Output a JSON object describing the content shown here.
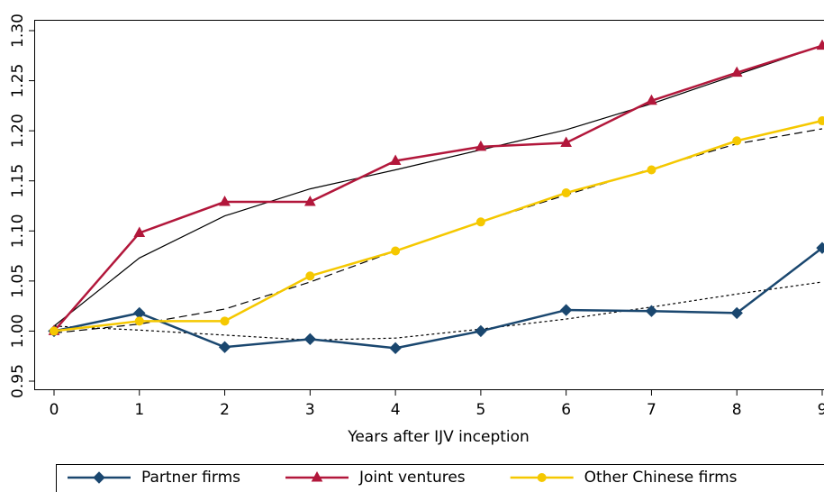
{
  "chart_data": {
    "type": "line",
    "xlabel": "Years after IJV inception",
    "x": [
      0,
      1,
      2,
      3,
      4,
      5,
      6,
      7,
      8,
      9
    ],
    "xlim": [
      0,
      9
    ],
    "xticks": [
      0,
      1,
      2,
      3,
      4,
      5,
      6,
      7,
      8,
      9
    ],
    "ylim": [
      0.95,
      1.3
    ],
    "yticks": [
      {
        "value": 0.95,
        "label": "0.95"
      },
      {
        "value": 1.0,
        "label": "1.00"
      },
      {
        "value": 1.05,
        "label": "1.05"
      },
      {
        "value": 1.1,
        "label": "1.10"
      },
      {
        "value": 1.15,
        "label": "1.15"
      },
      {
        "value": 1.2,
        "label": "1.20"
      },
      {
        "value": 1.25,
        "label": "1.25"
      },
      {
        "value": 1.3,
        "label": "1.30"
      }
    ],
    "legend": "bottom",
    "series": [
      {
        "color": "#000000",
        "dash": "dotted",
        "values": [
          1.005,
          1.001,
          0.996,
          0.991,
          0.993,
          1.002,
          1.012,
          1.024,
          1.037,
          1.049
        ]
      },
      {
        "color": "#000000",
        "dash": "solid",
        "values": [
          1.005,
          1.073,
          1.115,
          1.142,
          1.161,
          1.181,
          1.201,
          1.227,
          1.256,
          1.285
        ]
      },
      {
        "color": "#000000",
        "dash": "dashed",
        "values": [
          0.998,
          1.007,
          1.022,
          1.049,
          1.08,
          1.109,
          1.136,
          1.162,
          1.187,
          1.202
        ]
      },
      {
        "name": "Partner firms",
        "color": "#1a476f",
        "marker": "diamond",
        "values": [
          1.0,
          1.018,
          0.984,
          0.992,
          0.983,
          1.0,
          1.021,
          1.02,
          1.018,
          1.083
        ]
      },
      {
        "name": "Joint ventures",
        "color": "#b2173b",
        "marker": "triangle",
        "values": [
          1.0,
          1.098,
          1.129,
          1.129,
          1.17,
          1.184,
          1.188,
          1.23,
          1.258,
          1.285
        ]
      },
      {
        "name": "Other Chinese firms",
        "color": "#f5c800",
        "marker": "circle",
        "values": [
          1.0,
          1.01,
          1.01,
          1.055,
          1.08,
          1.109,
          1.138,
          1.161,
          1.19,
          1.21
        ]
      }
    ]
  }
}
